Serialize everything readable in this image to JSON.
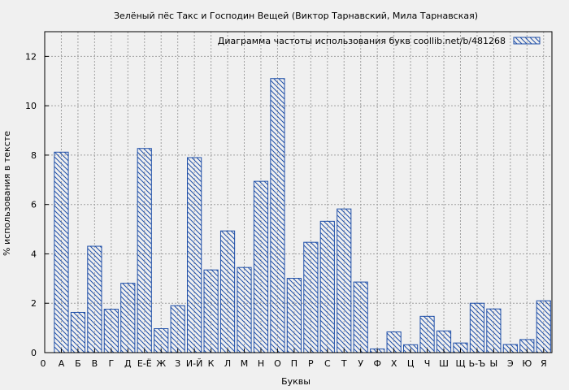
{
  "chart_data": {
    "type": "bar",
    "title": "Зелёный пёс Такс и Господин Вещей (Виктор Тарнавский, Мила Тарнавская)",
    "legend_label": "Диаграмма частоты использования букв  coollib.net/b/481268",
    "legend_position": "top-right",
    "xlabel": "Буквы",
    "ylabel": "% использования в тексте",
    "ylim": [
      0,
      13
    ],
    "yticks": [
      0,
      2,
      4,
      6,
      8,
      10,
      12
    ],
    "grid": true,
    "x_start_label": "0",
    "categories": [
      "А",
      "Б",
      "В",
      "Г",
      "Д",
      "Е-Ё",
      "Ж",
      "З",
      "И-Й",
      "К",
      "Л",
      "М",
      "Н",
      "О",
      "П",
      "Р",
      "С",
      "Т",
      "У",
      "Ф",
      "Х",
      "Ц",
      "Ч",
      "Ш",
      "Щ",
      "Ь-Ъ",
      "Ы",
      "Э",
      "Ю",
      "Я"
    ],
    "values": [
      8.12,
      1.63,
      4.31,
      1.76,
      2.81,
      8.27,
      0.97,
      1.9,
      7.9,
      3.35,
      4.93,
      3.45,
      6.94,
      11.1,
      3.01,
      4.47,
      5.32,
      5.82,
      2.86,
      0.15,
      0.84,
      0.32,
      1.47,
      0.88,
      0.39,
      2.0,
      1.77,
      0.33,
      0.53,
      2.1
    ],
    "colors": {
      "bar_stroke": "#1f4fa8",
      "grid": "#a0a0a0",
      "background": "#f0f0f0"
    }
  }
}
